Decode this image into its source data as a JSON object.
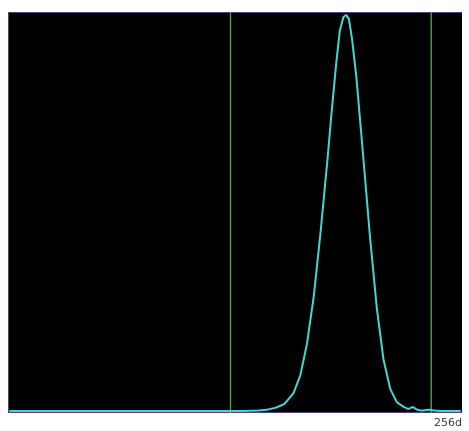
{
  "histogram": {
    "corner_label": "256d",
    "colors": {
      "background": "#000000",
      "frame": "#5a3f74",
      "curve": "#43d6d2",
      "marker": "#4fae47",
      "corner_label": "#3a3a3a"
    },
    "markers": {
      "left": 0.49,
      "right": 0.936
    },
    "curve_points": [
      [
        0.0,
        0.0
      ],
      [
        0.52,
        0.0
      ],
      [
        0.55,
        0.001
      ],
      [
        0.57,
        0.003
      ],
      [
        0.59,
        0.008
      ],
      [
        0.61,
        0.018
      ],
      [
        0.63,
        0.045
      ],
      [
        0.645,
        0.09
      ],
      [
        0.66,
        0.17
      ],
      [
        0.675,
        0.29
      ],
      [
        0.69,
        0.45
      ],
      [
        0.705,
        0.63
      ],
      [
        0.715,
        0.76
      ],
      [
        0.725,
        0.88
      ],
      [
        0.733,
        0.96
      ],
      [
        0.741,
        0.995
      ],
      [
        0.747,
        1.0
      ],
      [
        0.753,
        0.99
      ],
      [
        0.76,
        0.94
      ],
      [
        0.77,
        0.84
      ],
      [
        0.785,
        0.64
      ],
      [
        0.8,
        0.44
      ],
      [
        0.815,
        0.26
      ],
      [
        0.83,
        0.13
      ],
      [
        0.845,
        0.055
      ],
      [
        0.86,
        0.022
      ],
      [
        0.875,
        0.01
      ],
      [
        0.885,
        0.005
      ],
      [
        0.895,
        0.01
      ],
      [
        0.905,
        0.003
      ],
      [
        0.915,
        0.001
      ],
      [
        0.93,
        0.003
      ],
      [
        0.945,
        0.001
      ],
      [
        0.96,
        0.0
      ],
      [
        1.0,
        0.0
      ]
    ]
  }
}
